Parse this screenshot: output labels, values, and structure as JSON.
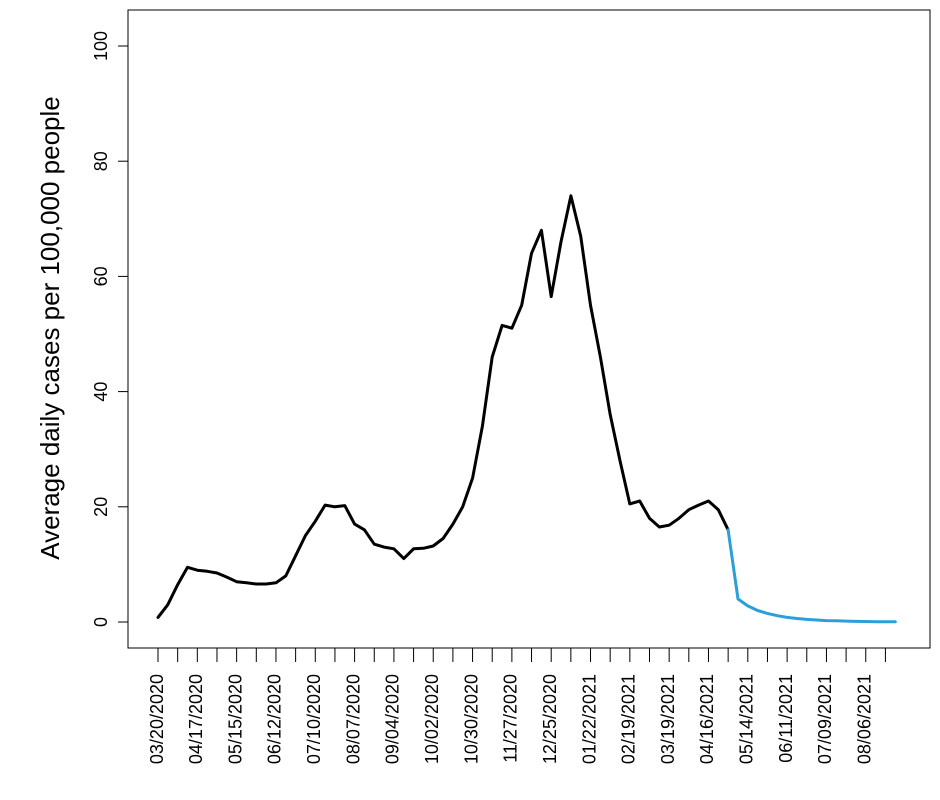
{
  "chart_data": {
    "type": "line",
    "ylabel": "Average daily cases per 100,000 people",
    "categories": [
      "03/20/2020",
      null,
      null,
      null,
      "04/17/2020",
      null,
      null,
      null,
      "05/15/2020",
      null,
      null,
      null,
      "06/12/2020",
      null,
      null,
      null,
      "07/10/2020",
      null,
      null,
      null,
      "08/07/2020",
      null,
      null,
      null,
      "09/04/2020",
      null,
      null,
      null,
      "10/02/2020",
      null,
      null,
      null,
      "10/30/2020",
      null,
      null,
      null,
      "11/27/2020",
      null,
      null,
      null,
      "12/25/2020",
      null,
      null,
      null,
      "01/22/2021",
      null,
      null,
      null,
      "02/19/2021",
      null,
      null,
      null,
      "03/19/2021",
      null,
      null,
      null,
      "04/16/2021",
      null,
      null,
      null,
      "05/14/2021",
      null,
      null,
      null,
      "06/11/2021",
      null,
      null,
      null,
      "07/09/2021",
      null,
      null,
      null,
      "08/06/2021",
      null,
      null,
      null
    ],
    "xtick_step": 2,
    "series": [
      {
        "color": "#000000",
        "values": [
          0.8,
          3,
          6.5,
          9.5,
          9,
          8.8,
          8.5,
          7.8,
          7,
          6.8,
          6.6,
          6.6,
          6.8,
          8,
          11.5,
          15,
          17.5,
          20.3,
          20,
          20.2,
          17,
          16,
          13.5,
          13,
          12.7,
          11,
          12.7,
          12.8,
          13.2,
          14.5,
          17,
          20,
          25,
          34,
          46,
          51.5,
          51,
          55,
          64,
          68,
          56.5,
          66,
          74,
          67,
          55,
          46,
          36,
          28,
          20.5,
          21,
          18,
          16.5,
          16.8,
          18,
          19.5,
          20.3,
          21,
          19.5,
          16,
          null,
          null,
          null,
          null,
          null,
          null,
          null,
          null,
          null,
          null,
          null,
          null,
          null,
          null,
          null,
          null,
          null
        ]
      },
      {
        "color": "#2b9fd9",
        "values": [
          null,
          null,
          null,
          null,
          null,
          null,
          null,
          null,
          null,
          null,
          null,
          null,
          null,
          null,
          null,
          null,
          null,
          null,
          null,
          null,
          null,
          null,
          null,
          null,
          null,
          null,
          null,
          null,
          null,
          null,
          null,
          null,
          null,
          null,
          null,
          null,
          null,
          null,
          null,
          null,
          null,
          null,
          null,
          null,
          null,
          null,
          null,
          null,
          null,
          null,
          null,
          null,
          null,
          null,
          null,
          null,
          null,
          null,
          16,
          4,
          2.8,
          2,
          1.5,
          1.1,
          0.8,
          0.6,
          0.45,
          0.35,
          0.25,
          0.2,
          0.15,
          0.1,
          0.08,
          0.05,
          0.04,
          0.03
        ]
      }
    ],
    "ylim": [
      0,
      100
    ],
    "yticks": [
      0,
      20,
      40,
      60,
      80,
      100
    ]
  }
}
